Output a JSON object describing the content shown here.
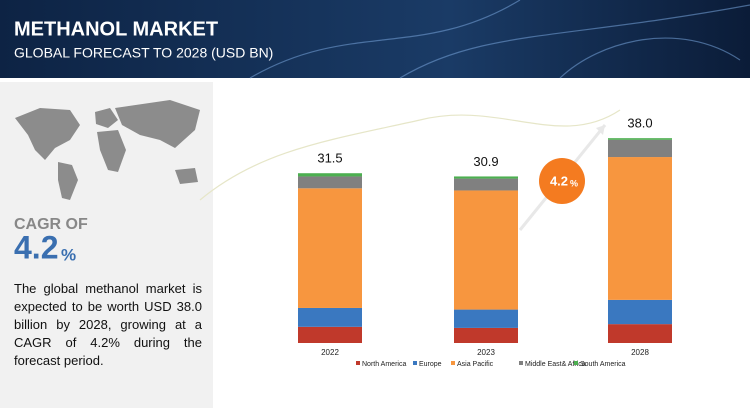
{
  "header": {
    "title": "METHANOL MARKET",
    "subtitle": "GLOBAL FORECAST TO 2028 (USD BN)"
  },
  "cagr": {
    "label": "CAGR OF",
    "value": "4.2",
    "unit": "%"
  },
  "description": "The global methanol market is expected to be worth USD 38.0 billion by 2028, growing at a CAGR of 4.2% during the forecast period.",
  "chart_data": {
    "type": "stacked-bar",
    "categories": [
      "2022",
      "2023",
      "2028"
    ],
    "total_labels": [
      "31.5",
      "30.9",
      "38.0"
    ],
    "badge": {
      "value": "4.2",
      "unit": "%"
    },
    "series": [
      {
        "name": "North America",
        "color": "#c0392b",
        "values": [
          3.0,
          2.8,
          3.5
        ]
      },
      {
        "name": "Europe",
        "color": "#3a78c0",
        "values": [
          3.5,
          3.4,
          4.5
        ]
      },
      {
        "name": "Asia Pacific",
        "color": "#f7963f",
        "values": [
          22.2,
          22.1,
          26.5
        ]
      },
      {
        "name": "Middle East& Africa",
        "color": "#808080",
        "values": [
          2.2,
          2.2,
          3.2
        ]
      },
      {
        "name": "South America",
        "color": "#4caf50",
        "values": [
          0.6,
          0.4,
          0.3
        ]
      }
    ]
  }
}
